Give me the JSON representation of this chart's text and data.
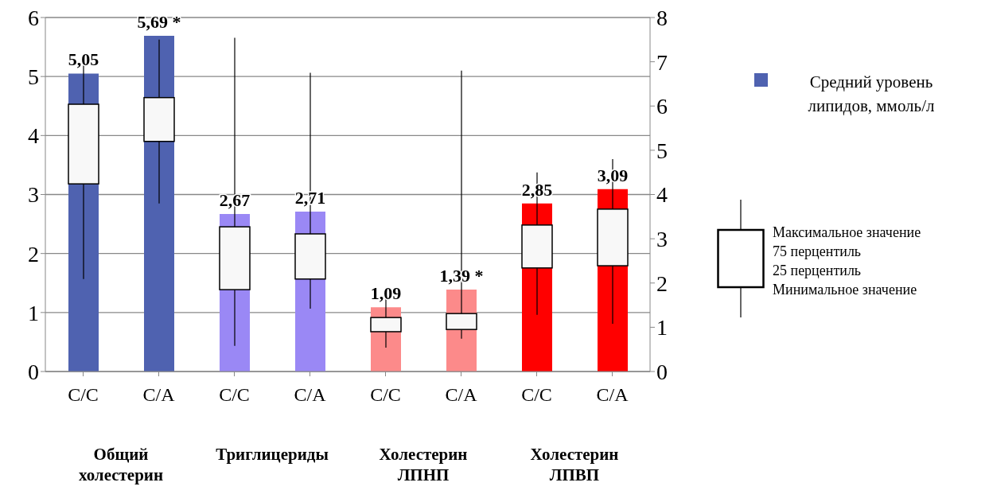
{
  "chart_data": {
    "type": "bar",
    "categories": [
      "С/С",
      "С/А",
      "С/С",
      "С/А",
      "С/С",
      "С/А",
      "С/С",
      "С/А"
    ],
    "series": [
      {
        "name": "Средний уровень липидов, ммоль/л",
        "color": "#4f62b0",
        "colors": [
          "#4f62b0",
          "#4f62b0",
          "#9a88f5",
          "#9a88f5",
          "#fc8a8a",
          "#fc8a8a",
          "#ff0000",
          "#ff0000"
        ],
        "values": [
          5.05,
          5.69,
          2.67,
          2.71,
          1.09,
          1.39,
          2.85,
          3.09
        ],
        "value_labels": [
          "5,05",
          "5,69 *",
          "2,67",
          "2,71",
          "1,09",
          "1,39 *",
          "2,85",
          "3,09"
        ]
      },
      {
        "type": "box",
        "axis": "y2",
        "color": "#f8f8f8",
        "boxes": [
          {
            "low": 2.09,
            "q1": 4.24,
            "q3": 6.04,
            "high": 7.0
          },
          {
            "low": 3.8,
            "q1": 5.2,
            "q3": 6.19,
            "high": 7.5
          },
          {
            "low": 0.58,
            "q1": 1.85,
            "q3": 3.27,
            "high": 7.54
          },
          {
            "low": 1.42,
            "q1": 2.09,
            "q3": 3.11,
            "high": 6.75
          },
          {
            "low": 0.54,
            "q1": 0.9,
            "q3": 1.22,
            "high": 1.8
          },
          {
            "low": 0.74,
            "q1": 0.95,
            "q3": 1.31,
            "high": 6.8
          },
          {
            "low": 1.28,
            "q1": 2.34,
            "q3": 3.31,
            "high": 4.5
          },
          {
            "low": 1.08,
            "q1": 2.39,
            "q3": 3.67,
            "high": 4.8
          }
        ]
      }
    ],
    "ylim": [
      0,
      6
    ],
    "yticks": [
      0,
      1,
      2,
      3,
      4,
      5,
      6
    ],
    "y2lim": [
      0,
      8
    ],
    "y2ticks": [
      0,
      1,
      2,
      3,
      4,
      5,
      6,
      7,
      8
    ],
    "grid": "y",
    "legend": "right",
    "annotations": [
      "Общий холестерин",
      "Триглицериды",
      "Холестерин ЛПНП",
      "Холестерин ЛПВП",
      "Максимальное значение",
      "75 перцентиль",
      "25 перцентиль",
      "Минимальное значение"
    ]
  }
}
